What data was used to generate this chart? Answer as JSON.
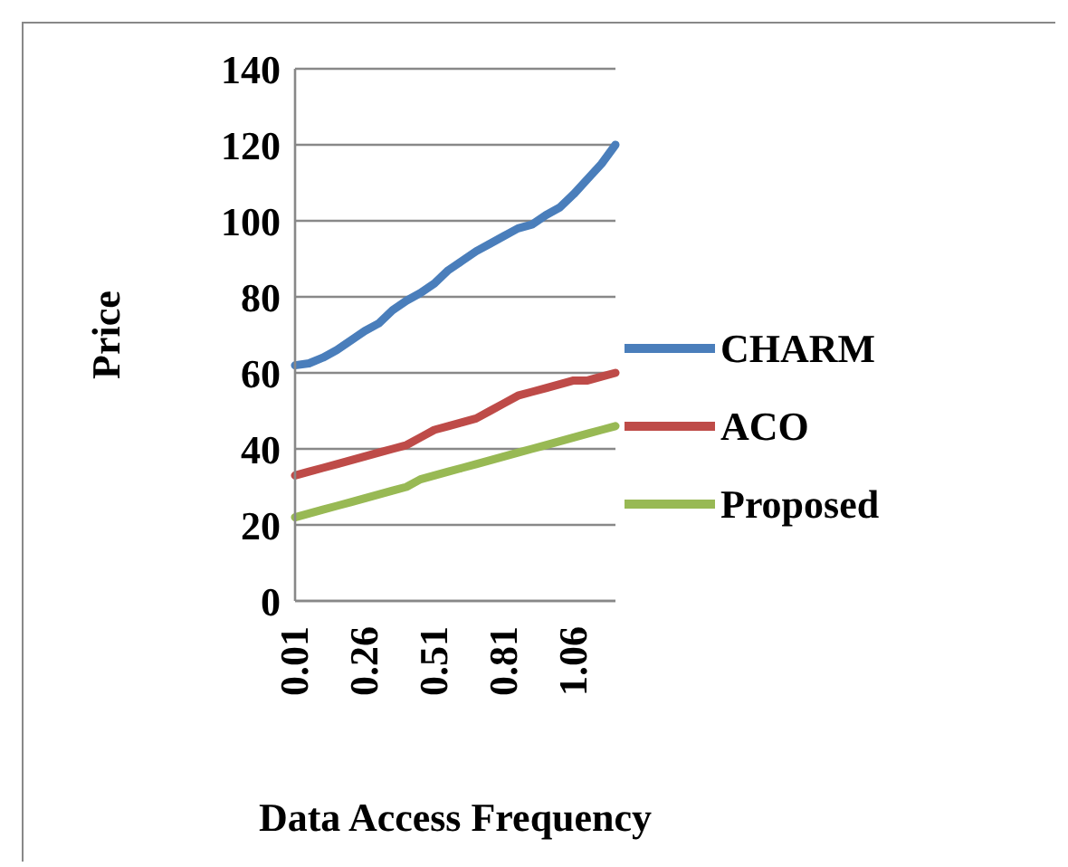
{
  "chart_data": {
    "type": "line",
    "xlabel": "Data Access Frequency",
    "ylabel": "Price",
    "categories": [
      "0.01",
      null,
      null,
      null,
      null,
      "0.26",
      null,
      null,
      null,
      null,
      "0.51",
      null,
      null,
      null,
      null,
      "0.81",
      null,
      null,
      null,
      null,
      "1.06",
      null,
      null,
      null
    ],
    "series": [
      {
        "name": "CHARM",
        "color": "#4a7ebb",
        "values": [
          62,
          62.5,
          64,
          66,
          68.5,
          71,
          73,
          76.5,
          79,
          81,
          83.5,
          87,
          89.5,
          92,
          94,
          96,
          98,
          99,
          101.5,
          103.5,
          107,
          111,
          115,
          120
        ]
      },
      {
        "name": "ACO",
        "color": "#be4b48",
        "values": [
          33,
          34,
          35,
          36,
          37,
          38,
          39,
          40,
          41,
          43,
          45,
          46,
          47,
          48,
          50,
          52,
          54,
          55,
          56,
          57,
          58,
          58,
          59,
          60
        ]
      },
      {
        "name": "Proposed",
        "color": "#98b954",
        "values": [
          22,
          23,
          24,
          25,
          26,
          27,
          28,
          29,
          30,
          32,
          33,
          34,
          35,
          36,
          37,
          38,
          39,
          40,
          41,
          42,
          43,
          44,
          45,
          46
        ]
      }
    ],
    "ylim": [
      0,
      140
    ],
    "yticks": [
      0,
      20,
      40,
      60,
      80,
      100,
      120,
      140
    ],
    "grid": "y",
    "legend": "right",
    "marker": "none",
    "line_style": "solid"
  }
}
